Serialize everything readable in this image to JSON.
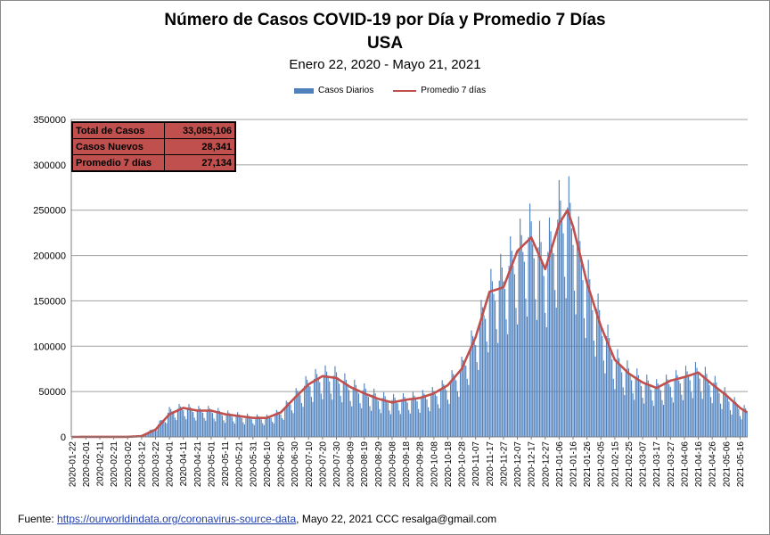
{
  "title_line1": "Número de  Casos  COVID-19 por Día y Promedio 7 Días",
  "title_line2": "USA",
  "subtitle": "Enero 22, 2020 - Mayo 21, 2021",
  "legend": {
    "bars": "Casos Diarios",
    "line": "Promedio 7 días"
  },
  "stats": [
    {
      "label": "Total de Casos",
      "value": "33,085,106"
    },
    {
      "label": "Casos Nuevos",
      "value": "28,341"
    },
    {
      "label": "Promedio 7 días",
      "value": "27,134"
    }
  ],
  "footer": {
    "prefix": "Fuente: ",
    "link": "https://ourworldindata.org/coronavirus-source-data",
    "suffix": ",  Mayo 22, 2021      CCC     resalga@gmail.com"
  },
  "colors": {
    "bars": "#4f81bd",
    "line": "#c0504d",
    "stats_bg": "#c0504d"
  },
  "chart_data": {
    "type": "bar",
    "title": "Número de  Casos  COVID-19 por Día y Promedio 7 Días",
    "subtitle": "Enero 22, 2020 - Mayo 21, 2021",
    "x_start": "2020-01-22",
    "x_end": "2021-05-21",
    "xlabel": "",
    "ylabel": "",
    "ylim": [
      0,
      350000
    ],
    "yticks": [
      "0",
      "50000",
      "100000",
      "150000",
      "200000",
      "250000",
      "300000",
      "350000"
    ],
    "xticks": [
      "2020-01-22",
      "2020-02-01",
      "2020-02-11",
      "2020-02-21",
      "2020-03-02",
      "2020-03-12",
      "2020-03-22",
      "2020-04-01",
      "2020-04-11",
      "2020-04-21",
      "2020-05-01",
      "2020-05-11",
      "2020-05-21",
      "2020-05-31",
      "2020-06-10",
      "2020-06-20",
      "2020-06-30",
      "2020-07-10",
      "2020-07-20",
      "2020-07-30",
      "2020-08-09",
      "2020-08-19",
      "2020-08-29",
      "2020-09-08",
      "2020-09-18",
      "2020-09-28",
      "2020-10-08",
      "2020-10-18",
      "2020-10-28",
      "2020-11-07",
      "2020-11-17",
      "2020-11-27",
      "2020-12-07",
      "2020-12-17",
      "2020-12-27",
      "2021-01-06",
      "2021-01-16",
      "2021-01-26",
      "2021-02-05",
      "2021-02-15",
      "2021-02-25",
      "2021-03-07",
      "2021-03-17",
      "2021-03-27",
      "2021-04-06",
      "2021-04-16",
      "2021-04-26",
      "2021-05-06",
      "2021-05-16"
    ],
    "grid": true,
    "legend_position": "top",
    "series": [
      {
        "name": "Casos Diarios",
        "type": "bar",
        "note": "daily values approximated from the smoothed curve with weekly variation",
        "anchors": [
          [
            "2020-01-22",
            0
          ],
          [
            "2020-03-02",
            100
          ],
          [
            "2020-03-12",
            1500
          ],
          [
            "2020-03-22",
            10000
          ],
          [
            "2020-04-01",
            28000
          ],
          [
            "2020-04-11",
            32000
          ],
          [
            "2020-04-21",
            29000
          ],
          [
            "2020-05-01",
            29000
          ],
          [
            "2020-05-11",
            25000
          ],
          [
            "2020-05-21",
            23000
          ],
          [
            "2020-05-31",
            21000
          ],
          [
            "2020-06-10",
            21000
          ],
          [
            "2020-06-20",
            27000
          ],
          [
            "2020-06-30",
            44000
          ],
          [
            "2020-07-10",
            60000
          ],
          [
            "2020-07-20",
            67000
          ],
          [
            "2020-07-30",
            66000
          ],
          [
            "2020-08-09",
            55000
          ],
          [
            "2020-08-19",
            50000
          ],
          [
            "2020-08-29",
            43000
          ],
          [
            "2020-09-08",
            40000
          ],
          [
            "2020-09-18",
            41000
          ],
          [
            "2020-09-28",
            43000
          ],
          [
            "2020-10-08",
            47000
          ],
          [
            "2020-10-18",
            57000
          ],
          [
            "2020-10-28",
            75000
          ],
          [
            "2020-11-07",
            110000
          ],
          [
            "2020-11-17",
            155000
          ],
          [
            "2020-11-27",
            175000
          ],
          [
            "2020-12-07",
            200000
          ],
          [
            "2020-12-17",
            220000
          ],
          [
            "2020-12-27",
            190000
          ],
          [
            "2021-01-06",
            240000
          ],
          [
            "2021-01-12",
            248000
          ],
          [
            "2021-01-16",
            230000
          ],
          [
            "2021-01-26",
            170000
          ],
          [
            "2021-02-05",
            125000
          ],
          [
            "2021-02-15",
            85000
          ],
          [
            "2021-02-25",
            70000
          ],
          [
            "2021-03-07",
            60000
          ],
          [
            "2021-03-17",
            54000
          ],
          [
            "2021-03-27",
            60000
          ],
          [
            "2021-04-06",
            66000
          ],
          [
            "2021-04-16",
            71000
          ],
          [
            "2021-04-26",
            60000
          ],
          [
            "2021-05-06",
            45000
          ],
          [
            "2021-05-16",
            32000
          ],
          [
            "2021-05-21",
            28341
          ]
        ]
      },
      {
        "name": "Promedio 7 días",
        "type": "line",
        "points": [
          [
            "2020-01-22",
            0
          ],
          [
            "2020-03-02",
            100
          ],
          [
            "2020-03-12",
            900
          ],
          [
            "2020-03-22",
            8000
          ],
          [
            "2020-04-01",
            25000
          ],
          [
            "2020-04-11",
            32000
          ],
          [
            "2020-04-21",
            29000
          ],
          [
            "2020-05-01",
            29000
          ],
          [
            "2020-05-11",
            25000
          ],
          [
            "2020-05-21",
            23000
          ],
          [
            "2020-05-31",
            21000
          ],
          [
            "2020-06-10",
            21000
          ],
          [
            "2020-06-20",
            27000
          ],
          [
            "2020-06-30",
            43000
          ],
          [
            "2020-07-10",
            58000
          ],
          [
            "2020-07-20",
            67000
          ],
          [
            "2020-07-30",
            65000
          ],
          [
            "2020-08-09",
            55000
          ],
          [
            "2020-08-19",
            48000
          ],
          [
            "2020-08-29",
            42000
          ],
          [
            "2020-09-08",
            38000
          ],
          [
            "2020-09-18",
            41000
          ],
          [
            "2020-09-28",
            43000
          ],
          [
            "2020-10-08",
            48000
          ],
          [
            "2020-10-18",
            57000
          ],
          [
            "2020-10-28",
            75000
          ],
          [
            "2020-11-07",
            110000
          ],
          [
            "2020-11-17",
            160000
          ],
          [
            "2020-11-27",
            165000
          ],
          [
            "2020-12-07",
            205000
          ],
          [
            "2020-12-17",
            220000
          ],
          [
            "2020-12-27",
            185000
          ],
          [
            "2021-01-06",
            235000
          ],
          [
            "2021-01-12",
            250000
          ],
          [
            "2021-01-16",
            232000
          ],
          [
            "2021-01-26",
            170000
          ],
          [
            "2021-02-05",
            122000
          ],
          [
            "2021-02-15",
            85000
          ],
          [
            "2021-02-25",
            70000
          ],
          [
            "2021-03-07",
            60000
          ],
          [
            "2021-03-17",
            54000
          ],
          [
            "2021-03-27",
            62000
          ],
          [
            "2021-04-06",
            66000
          ],
          [
            "2021-04-16",
            71000
          ],
          [
            "2021-04-26",
            58000
          ],
          [
            "2021-05-06",
            46000
          ],
          [
            "2021-05-16",
            32000
          ],
          [
            "2021-05-21",
            27134
          ]
        ]
      }
    ]
  }
}
